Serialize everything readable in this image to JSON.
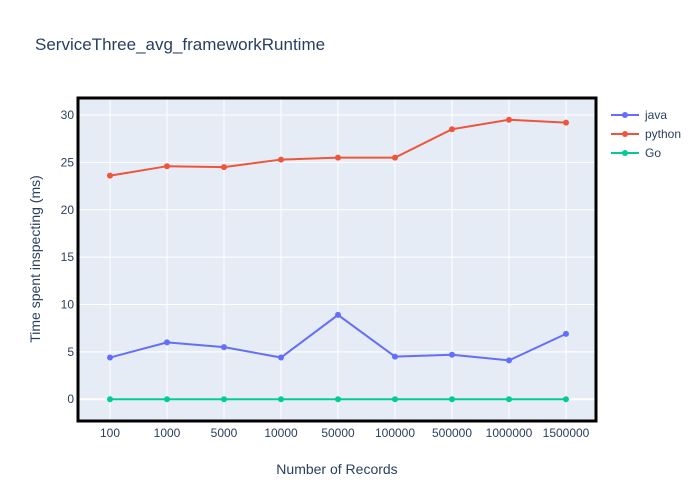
{
  "chart_data": {
    "type": "line",
    "title": "ServiceThree_avg_frameworkRuntime",
    "xlabel": "Number of Records",
    "ylabel": "Time spent inspecting (ms)",
    "categories": [
      "100",
      "1000",
      "5000",
      "10000",
      "50000",
      "100000",
      "500000",
      "1000000",
      "1500000"
    ],
    "ylim": [
      -2.3,
      31.8
    ],
    "yticks": [
      0,
      5,
      10,
      15,
      20,
      25,
      30
    ],
    "grid": true,
    "legend_position": "top-right",
    "series": [
      {
        "name": "java",
        "color": "#636efa",
        "values": [
          4.4,
          6.0,
          5.5,
          4.4,
          8.9,
          4.5,
          4.7,
          4.1,
          6.9
        ]
      },
      {
        "name": "python",
        "color": "#ef553b",
        "values": [
          23.6,
          24.6,
          24.5,
          25.3,
          25.5,
          25.5,
          28.5,
          29.5,
          29.2
        ]
      },
      {
        "name": "Go",
        "color": "#00cc96",
        "values": [
          0,
          0,
          0,
          0,
          0,
          0,
          0,
          0,
          0
        ]
      }
    ]
  }
}
